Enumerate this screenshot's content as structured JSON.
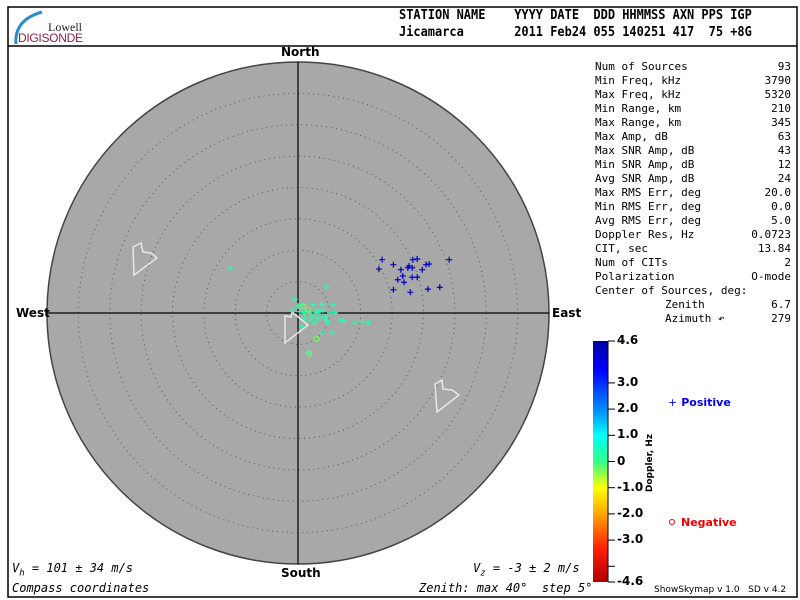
{
  "logo": {
    "line1": "Lowell",
    "line2": "DIGISONDE"
  },
  "header": {
    "labels": "STATION NAME    YYYY DATE  DDD HHMMSS AXN PPS IGP",
    "values": "Jicamarca       2011 Feb24 055 140251 417  75 +8G"
  },
  "compass": {
    "north": "North",
    "south": "South",
    "east": "East",
    "west": "West"
  },
  "stats": [
    {
      "label": "Num of Sources",
      "value": "93"
    },
    {
      "label": "Min Freq, kHz",
      "value": "3790"
    },
    {
      "label": "Max Freq, kHz",
      "value": "5320"
    },
    {
      "label": "Min Range, km",
      "value": "210"
    },
    {
      "label": "Max Range, km",
      "value": "345"
    },
    {
      "label": "Max Amp, dB",
      "value": "63"
    },
    {
      "label": "Max SNR Amp, dB",
      "value": "43"
    },
    {
      "label": "Min SNR Amp, dB",
      "value": "12"
    },
    {
      "label": "Avg SNR Amp, dB",
      "value": "24"
    },
    {
      "label": "Max RMS Err, deg",
      "value": "20.0"
    },
    {
      "label": "Min RMS Err, deg",
      "value": "0.0"
    },
    {
      "label": "Avg RMS Err, deg",
      "value": "5.0"
    },
    {
      "label": "Doppler Res, Hz",
      "value": "0.0723"
    },
    {
      "label": "CIT, sec",
      "value": "13.84"
    },
    {
      "label": "Num of CITs",
      "value": "2"
    },
    {
      "label": "Polarization",
      "value": "O-mode"
    },
    {
      "label": "Center of Sources, deg:",
      "value": ""
    },
    {
      "label": "Zenith",
      "value": "6.7"
    },
    {
      "label": "Azimuth ↶",
      "value": "279"
    }
  ],
  "colorbar": {
    "title": "Doppler, Hz",
    "ticks": [
      "4.6",
      "3.0",
      "2.0",
      "1.0",
      "0",
      "-1.0",
      "-2.0",
      "-3.0",
      "-4.6"
    ],
    "tick_values": [
      4.6,
      3.0,
      2.0,
      1.0,
      0,
      -1.0,
      -2.0,
      -3.0,
      -4.6
    ],
    "range": [
      -4.6,
      4.6
    ]
  },
  "legend": {
    "positive": "Positive",
    "negative": "Negative",
    "positive_symbol": "+",
    "positive_color": "#0000ee",
    "negative_color": "#ee0000"
  },
  "footer": {
    "vh": "= 101 ± 34 m/s",
    "vz": "= -3 ± 2 m/s",
    "coords": "Compass coordinates",
    "zenith": "Zenith: max 40°  step 5°",
    "version": "ShowSkymap v 1.0   SD v 4.2"
  },
  "chart_data": {
    "type": "scatter",
    "projection": "polar sky map, zenith angle radial",
    "zenith_max_deg": 40,
    "zenith_step_deg": 5,
    "units": "east/north offset, deg of zenith",
    "background": "#a8a8a8",
    "positive_points": [
      [
        13.4,
        8.5,
        4.0
      ],
      [
        12.9,
        7.0,
        4.6
      ],
      [
        15.2,
        7.7,
        4.6
      ],
      [
        16.4,
        6.9,
        4.0
      ],
      [
        16.7,
        5.9,
        4.0
      ],
      [
        17.5,
        7.2,
        4.0
      ],
      [
        18.2,
        7.2,
        4.0
      ],
      [
        17.7,
        7.5,
        4.0
      ],
      [
        18.3,
        8.5,
        4.0
      ],
      [
        19.0,
        8.6,
        4.0
      ],
      [
        18.2,
        5.7,
        4.0
      ],
      [
        19.0,
        5.7,
        4.0
      ],
      [
        19.8,
        6.9,
        4.0
      ],
      [
        20.4,
        7.7,
        4.0
      ],
      [
        20.9,
        7.8,
        4.0
      ],
      [
        20.7,
        3.8,
        4.0
      ],
      [
        22.6,
        4.1,
        4.6
      ],
      [
        24.1,
        8.5,
        4.0
      ],
      [
        15.2,
        3.7,
        4.0
      ],
      [
        16.9,
        4.9,
        4.0
      ],
      [
        15.9,
        5.3,
        4.0
      ],
      [
        17.9,
        3.3,
        4.6
      ],
      [
        -0.5,
        2.2,
        0.3
      ],
      [
        4.6,
        4.1,
        0.3
      ],
      [
        -1.0,
        0.5,
        0.3
      ],
      [
        0.5,
        1.3,
        0.3
      ],
      [
        1.8,
        0,
        0.3
      ],
      [
        2.4,
        1.3,
        0.3
      ],
      [
        3.5,
        0.2,
        0.3
      ],
      [
        4.3,
        -0.6,
        0.3
      ],
      [
        5.6,
        1.3,
        0.3
      ],
      [
        5.9,
        0,
        0.3
      ],
      [
        7.3,
        -1.3,
        0.3
      ],
      [
        5.1,
        0,
        0.3
      ],
      [
        6.7,
        -1.1,
        0.3
      ],
      [
        9.1,
        -1.6,
        0.3
      ],
      [
        10.2,
        -1.4,
        0.3
      ],
      [
        11.2,
        -1.6,
        0.3
      ],
      [
        5.4,
        -3.2,
        0.3
      ],
      [
        3.8,
        -3.2,
        0.3
      ],
      [
        3.2,
        -0.8,
        0.3
      ],
      [
        1.9,
        -1.1,
        0.3
      ],
      [
        1.1,
        -0.8,
        0.3
      ],
      [
        2.7,
        -1.6,
        0.3
      ],
      [
        4.8,
        -1.6,
        0.3
      ],
      [
        0.3,
        0.2,
        0.3
      ],
      [
        1.0,
        0,
        0.3
      ],
      [
        4.0,
        0.5,
        0.3
      ],
      [
        2.9,
        0,
        0.3
      ],
      [
        2.2,
        -0.6,
        0.3
      ],
      [
        4.5,
        -1.1,
        0.3
      ],
      [
        0.6,
        -2.1,
        0.3
      ],
      [
        1.6,
        -6.4,
        0.3
      ],
      [
        3.8,
        1.3,
        0.3
      ],
      [
        0,
        1.1,
        0.3
      ],
      [
        3.0,
        0.5,
        0.3
      ],
      [
        -10.8,
        7.2,
        0.3
      ]
    ],
    "negative_points": [
      [
        0.8,
        1.1,
        -0.3
      ],
      [
        1.6,
        0.5,
        -0.3
      ],
      [
        3.0,
        -4.1,
        -0.3
      ],
      [
        1.8,
        -6.5,
        -0.3
      ]
    ]
  }
}
